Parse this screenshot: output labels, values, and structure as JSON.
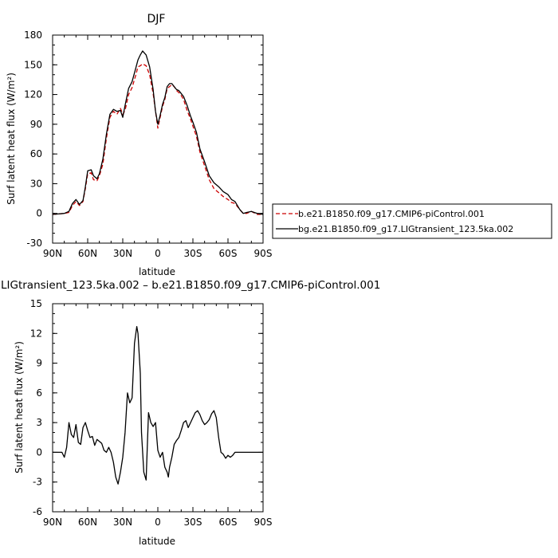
{
  "chart_data": [
    {
      "type": "line",
      "title": "DJF",
      "xlabel": "latitude",
      "ylabel": "Surf latent heat flux (W/m²)",
      "xlim": [
        -90,
        90
      ],
      "ylim": [
        -30,
        180
      ],
      "xticks": [
        "90N",
        "60N",
        "30N",
        "0",
        "30S",
        "60S",
        "90S"
      ],
      "yticks": [
        "-30",
        "0",
        "30",
        "60",
        "90",
        "120",
        "150",
        "180"
      ],
      "legend_position": "right",
      "series": [
        {
          "name": "b.e21.B1850.f09_g17.CMIP6-piControl.001",
          "color": "#cc0000",
          "dash": "dashed",
          "x": [
            -90,
            -80,
            -76,
            -73,
            -70,
            -67,
            -64,
            -62,
            -60,
            -57,
            -55,
            -52,
            -50,
            -47,
            -44,
            -41,
            -38,
            -35,
            -32,
            -30,
            -28,
            -25,
            -22,
            -19,
            -17,
            -15,
            -13,
            -10,
            -7,
            -4,
            -2,
            0,
            2,
            4,
            6,
            8,
            10,
            12,
            14,
            16,
            18,
            20,
            22,
            25,
            28,
            30,
            33,
            36,
            40,
            44,
            48,
            52,
            56,
            60,
            63,
            66,
            70,
            73,
            76,
            80,
            85,
            90
          ],
          "values": [
            -1,
            0,
            1,
            8,
            12,
            8,
            12,
            25,
            40,
            41,
            34,
            33,
            38,
            50,
            76,
            97,
            103,
            100,
            106,
            100,
            104,
            120,
            127,
            139,
            148,
            149,
            151,
            149,
            140,
            121,
            103,
            86,
            97,
            108,
            115,
            126,
            128,
            130,
            128,
            124,
            122,
            119,
            115,
            104,
            95,
            88,
            78,
            62,
            48,
            34,
            25,
            21,
            17,
            14,
            11,
            10,
            4,
            0,
            0,
            2,
            -1,
            -1
          ]
        },
        {
          "name": "bg.e21.B1850.f09_g17.LIGtransient_123.5ka.002",
          "color": "#000000",
          "dash": "solid",
          "x": [
            -90,
            -80,
            -76,
            -73,
            -70,
            -67,
            -64,
            -62,
            -60,
            -57,
            -55,
            -52,
            -50,
            -47,
            -44,
            -41,
            -38,
            -35,
            -32,
            -30,
            -28,
            -25,
            -22,
            -19,
            -17,
            -15,
            -13,
            -10,
            -7,
            -4,
            -2,
            0,
            2,
            4,
            6,
            8,
            10,
            12,
            14,
            16,
            18,
            20,
            22,
            25,
            28,
            30,
            33,
            36,
            40,
            44,
            48,
            52,
            56,
            60,
            63,
            66,
            70,
            73,
            76,
            80,
            85,
            90
          ],
          "values": [
            -1,
            0,
            2,
            10,
            14,
            9,
            13,
            27,
            43,
            44,
            38,
            35,
            40,
            55,
            80,
            100,
            105,
            103,
            104,
            97,
            109,
            126,
            133,
            146,
            155,
            160,
            164,
            160,
            148,
            125,
            103,
            90,
            99,
            110,
            117,
            128,
            131,
            131,
            128,
            125,
            124,
            121,
            118,
            109,
            98,
            92,
            82,
            65,
            52,
            38,
            31,
            27,
            22,
            19,
            14,
            12,
            4,
            0,
            1,
            2,
            0,
            -1
          ]
        }
      ]
    },
    {
      "type": "line",
      "title": "LIGtransient_123.5ka.002 – b.e21.B1850.f09_g17.CMIP6-piControl.001",
      "xlabel": "latitude",
      "ylabel": "Surf latent heat flux (W/m²)",
      "xlim": [
        -90,
        90
      ],
      "ylim": [
        -6,
        15
      ],
      "xticks": [
        "90N",
        "60N",
        "30N",
        "0",
        "30S",
        "60S",
        "90S"
      ],
      "yticks": [
        "-6",
        "-3",
        "0",
        "3",
        "6",
        "9",
        "12",
        "15"
      ],
      "series": [
        {
          "color": "#000000",
          "dash": "solid",
          "x": [
            -90,
            -86,
            -82,
            -80,
            -78,
            -76,
            -74,
            -72,
            -70,
            -68,
            -66,
            -64,
            -62,
            -60,
            -58,
            -56,
            -54,
            -52,
            -50,
            -48,
            -46,
            -44,
            -42,
            -40,
            -38,
            -36,
            -34,
            -32,
            -30,
            -28,
            -26,
            -24,
            -22,
            -20,
            -18,
            -17,
            -15,
            -14,
            -12,
            -10,
            -8,
            -6,
            -4,
            -2,
            0,
            2,
            4,
            6,
            8,
            9,
            10,
            12,
            14,
            16,
            18,
            20,
            22,
            24,
            26,
            28,
            30,
            32,
            34,
            36,
            38,
            40,
            42,
            44,
            46,
            48,
            50,
            52,
            54,
            56,
            58,
            60,
            62,
            64,
            66,
            68,
            70,
            72,
            74,
            76,
            78,
            80,
            82,
            84,
            86,
            88,
            90
          ],
          "values": [
            0,
            0,
            0,
            -0.5,
            0.5,
            3,
            1.8,
            1.5,
            2.8,
            1,
            0.8,
            2.5,
            3,
            2.2,
            1.5,
            1.6,
            0.7,
            1.3,
            1.1,
            0.9,
            0.2,
            0,
            0.5,
            0,
            -1,
            -2.5,
            -3.2,
            -2,
            -0.5,
            2,
            6,
            5,
            5.5,
            11,
            12.7,
            12,
            8,
            2,
            -2,
            -2.8,
            4,
            3,
            2.6,
            3,
            0.2,
            -0.5,
            0,
            -1.5,
            -2,
            -2.5,
            -1.5,
            -0.5,
            0.8,
            1.2,
            1.5,
            2.2,
            3,
            3.2,
            2.5,
            3,
            3.5,
            4,
            4.2,
            3.8,
            3.2,
            2.8,
            3,
            3.3,
            3.9,
            4.2,
            3.5,
            1.5,
            0,
            -0.2,
            -0.6,
            -0.3,
            -0.5,
            -0.3,
            0,
            0,
            0,
            0,
            0,
            0,
            0,
            0,
            0,
            0,
            0,
            0,
            0
          ]
        }
      ]
    }
  ]
}
